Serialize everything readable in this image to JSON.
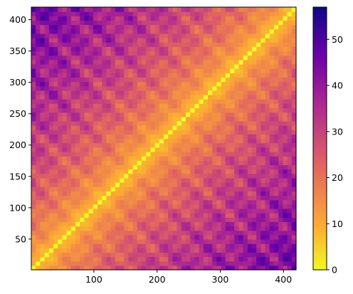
{
  "chart_data": {
    "type": "heatmap",
    "title": "",
    "xlabel": "",
    "ylabel": "",
    "xlim": [
      1,
      420
    ],
    "ylim": [
      1,
      420
    ],
    "x_ticks": [
      100,
      200,
      300,
      400
    ],
    "y_ticks": [
      50,
      100,
      150,
      200,
      250,
      300,
      350,
      400
    ],
    "symmetric": true,
    "diagonal_value": 0,
    "approx_max_distance": 57,
    "colormap": "plasma_r",
    "colormap_stops": [
      "#f0f921",
      "#fca636",
      "#e16462",
      "#b12a90",
      "#6a00a8",
      "#0d0887"
    ],
    "colorbar": {
      "range": [
        0,
        57
      ],
      "ticks": [
        0,
        10,
        20,
        30,
        40,
        50
      ]
    },
    "grid": false,
    "description_of_values": "pairwise distance matrix; 0 on the diagonal, largest (~55) at the far off-diagonal corners (top-left / bottom-right)"
  }
}
